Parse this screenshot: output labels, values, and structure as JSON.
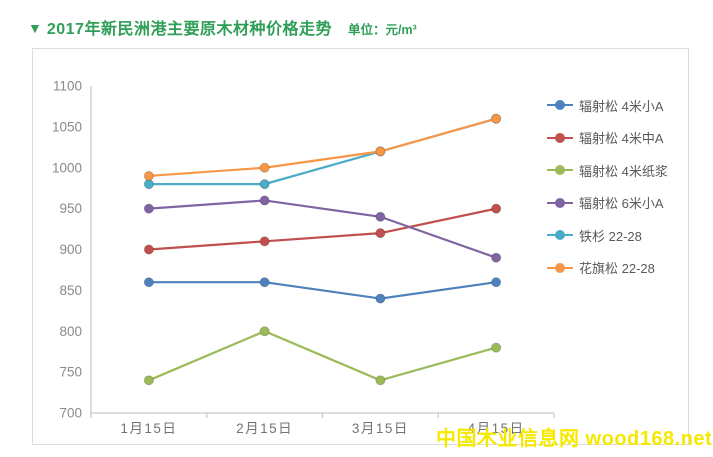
{
  "header": {
    "marker": "▼",
    "title": "2017年新民洲港主要原木材种价格走势",
    "unit": "单位：元/m³"
  },
  "watermark": {
    "text": "中国木业信息网 wood168.net"
  },
  "colors": {
    "title_green": "#2F9E56",
    "watermark_yellow": "#F5E900",
    "axis_line": "#c9c9c9",
    "y_tick_text": "#8a8a8a",
    "x_tick_text": "#737373",
    "legend_text": "#595959",
    "box_border": "#dddddd",
    "background": "#ffffff"
  },
  "chart_data": {
    "type": "line",
    "title": "2017年新民洲港主要原木材种价格走势",
    "unit": "单位：元/m³",
    "categories": [
      "1月15日",
      "2月15日",
      "3月15日",
      "4月15日"
    ],
    "series": [
      {
        "name": "辐射松 4米小A",
        "color": "#4F81BD",
        "values": [
          860,
          860,
          840,
          860
        ]
      },
      {
        "name": "辐射松 4米中A",
        "color": "#C0504D",
        "values": [
          900,
          910,
          920,
          950
        ]
      },
      {
        "name": "辐射松 4米纸浆",
        "color": "#9BBB59",
        "values": [
          740,
          800,
          740,
          780
        ]
      },
      {
        "name": "辐射松 6米小A",
        "color": "#8064A2",
        "values": [
          950,
          960,
          940,
          890
        ]
      },
      {
        "name": "铁杉 22-28",
        "color": "#4BACC6",
        "values": [
          980,
          980,
          1020,
          1060
        ]
      },
      {
        "name": "花旗松 22-28",
        "color": "#F79646",
        "values": [
          990,
          1000,
          1020,
          1060
        ]
      }
    ],
    "ylim": [
      700,
      1100
    ],
    "yticks": [
      700,
      750,
      800,
      850,
      900,
      950,
      1000,
      1050,
      1100
    ],
    "xlabel": "",
    "ylabel": "",
    "grid": false,
    "legend_position": "right",
    "notes": "铁杉 22-28 overlaps 花旗松 22-28 between 3月15日 and 4月15日 (drawn underneath)"
  }
}
